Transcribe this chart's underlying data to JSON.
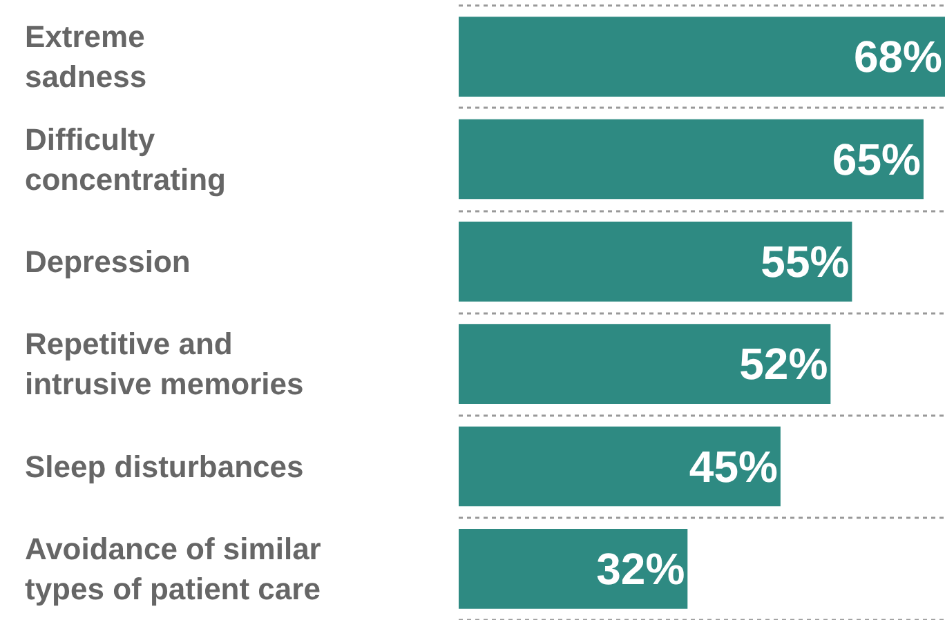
{
  "chart_data": {
    "type": "bar",
    "orientation": "horizontal",
    "categories": [
      "Extreme\nsadness",
      "Difficulty\nconcentrating",
      "Depression",
      "Repetitive and\nintrusive memories",
      "Sleep disturbances",
      "Avoidance of similar\ntypes of patient care"
    ],
    "values": [
      68,
      65,
      55,
      52,
      45,
      32
    ],
    "value_labels": [
      "68%",
      "65%",
      "55%",
      "52%",
      "45%",
      "32%"
    ],
    "color": "#2e8a82",
    "grid": "y",
    "tick_labels": "y"
  }
}
